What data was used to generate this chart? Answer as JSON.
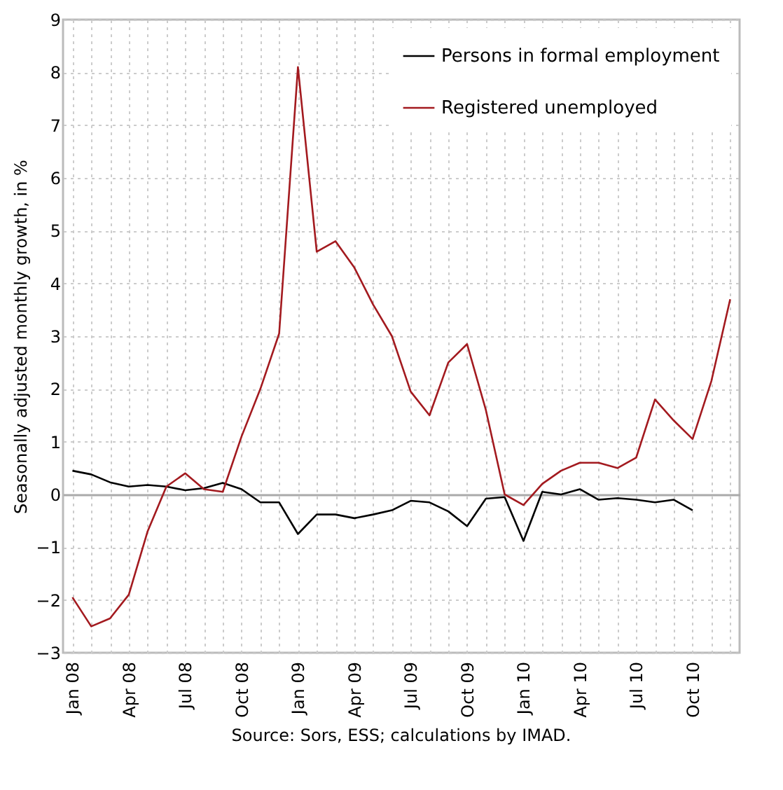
{
  "chart_data": {
    "type": "line",
    "ylabel": "Seasonally adjusted monthly growth, in %",
    "annotations": [
      "Source: Sors, ESS; calculations by IMAD."
    ],
    "categories": [
      "Jan 08",
      null,
      null,
      "Apr 08",
      null,
      null,
      "Jul 08",
      null,
      null,
      "Oct 08",
      null,
      null,
      "Jan 09",
      null,
      null,
      "Apr 09",
      null,
      null,
      "Jul 09",
      null,
      null,
      "Oct 09",
      null,
      null,
      "Jan 10",
      null,
      null,
      "Apr 10",
      null,
      null,
      "Jul 10",
      null,
      null,
      "Oct 10",
      null,
      null
    ],
    "series": [
      {
        "name": "Persons in formal employment",
        "color": "#000000",
        "values": [
          0.45,
          0.38,
          0.23,
          0.15,
          0.18,
          0.15,
          0.08,
          0.12,
          0.22,
          0.1,
          -0.15,
          -0.15,
          -0.75,
          -0.38,
          -0.38,
          -0.45,
          -0.38,
          -0.3,
          -0.12,
          -0.15,
          -0.32,
          -0.6,
          -0.08,
          -0.05,
          -0.88,
          0.05,
          0.0,
          0.1,
          -0.1,
          -0.07,
          -0.1,
          -0.15,
          -0.1,
          -0.3,
          null,
          null
        ]
      },
      {
        "name": "Registered unemployed",
        "color": "#a31a1f",
        "values": [
          -1.95,
          -2.5,
          -2.35,
          -1.9,
          -0.7,
          0.15,
          0.4,
          0.1,
          0.05,
          1.1,
          2.0,
          3.05,
          8.1,
          4.6,
          4.8,
          4.3,
          3.6,
          3.0,
          1.95,
          1.5,
          2.5,
          2.85,
          1.6,
          0.0,
          -0.2,
          0.2,
          0.45,
          0.6,
          0.6,
          0.5,
          0.7,
          1.8,
          1.4,
          1.05,
          2.15,
          3.7
        ]
      }
    ],
    "ylim": [
      -3,
      9
    ],
    "yticks": [
      -3,
      -2,
      -1,
      0,
      1,
      2,
      3,
      4,
      5,
      6,
      7,
      8,
      9
    ],
    "grid": true,
    "legend": "top right",
    "line_style": "solid"
  }
}
